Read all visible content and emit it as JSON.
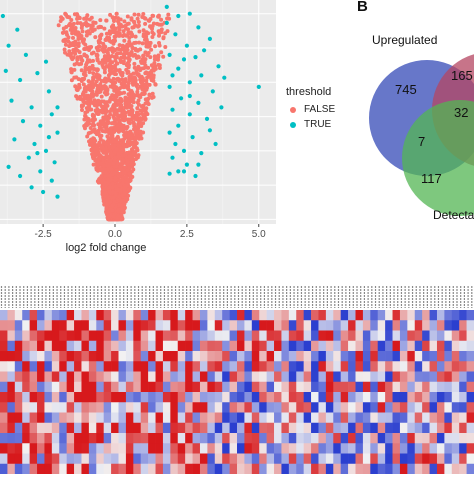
{
  "volcano": {
    "chart_data": {
      "type": "scatter",
      "xlabel": "log2 fold change",
      "x_ticks": [
        -2.5,
        0.0,
        2.5,
        5.0
      ],
      "x_tick_labels": [
        "-2.5",
        "0.0",
        "2.5",
        "5.0"
      ],
      "xlim": [
        -4.0,
        5.6
      ],
      "series": [
        {
          "name": "FALSE",
          "color": "#f8766d"
        },
        {
          "name": "TRUE",
          "color": "#00bfc4"
        }
      ],
      "true_points": [
        [
          -3.9,
          8.9
        ],
        [
          -3.4,
          8.3
        ],
        [
          -3.7,
          7.6
        ],
        [
          -3.1,
          7.2
        ],
        [
          -3.8,
          6.5
        ],
        [
          -3.3,
          6.1
        ],
        [
          -2.7,
          6.4
        ],
        [
          -2.3,
          5.6
        ],
        [
          -3.6,
          5.2
        ],
        [
          -2.9,
          4.9
        ],
        [
          -2.2,
          4.6
        ],
        [
          -3.2,
          4.3
        ],
        [
          -2.6,
          4.1
        ],
        [
          -2.0,
          3.8
        ],
        [
          -3.5,
          3.5
        ],
        [
          -2.8,
          3.3
        ],
        [
          -2.4,
          3.0
        ],
        [
          -3.0,
          2.7
        ],
        [
          -2.1,
          2.5
        ],
        [
          -2.6,
          2.1
        ],
        [
          -3.3,
          1.9
        ],
        [
          -2.2,
          1.7
        ],
        [
          -2.9,
          1.4
        ],
        [
          -2.5,
          1.2
        ],
        [
          -2.0,
          1.0
        ],
        [
          -3.7,
          2.3
        ],
        [
          -2.7,
          2.9
        ],
        [
          -2.3,
          3.6
        ],
        [
          -2.0,
          4.9
        ],
        [
          -2.4,
          6.9
        ],
        [
          1.8,
          9.3
        ],
        [
          2.2,
          8.9
        ],
        [
          2.6,
          9.0
        ],
        [
          2.9,
          8.4
        ],
        [
          2.1,
          8.1
        ],
        [
          3.3,
          7.9
        ],
        [
          2.5,
          7.6
        ],
        [
          1.9,
          7.2
        ],
        [
          2.8,
          7.1
        ],
        [
          3.6,
          6.7
        ],
        [
          2.2,
          6.6
        ],
        [
          3.0,
          6.3
        ],
        [
          2.6,
          6.0
        ],
        [
          1.9,
          5.8
        ],
        [
          3.4,
          5.6
        ],
        [
          2.3,
          5.3
        ],
        [
          2.9,
          5.1
        ],
        [
          2.0,
          4.8
        ],
        [
          2.6,
          4.6
        ],
        [
          3.2,
          4.4
        ],
        [
          2.2,
          4.1
        ],
        [
          1.9,
          3.8
        ],
        [
          2.7,
          3.6
        ],
        [
          2.1,
          3.3
        ],
        [
          2.4,
          3.0
        ],
        [
          3.0,
          2.9
        ],
        [
          2.0,
          2.7
        ],
        [
          2.5,
          2.4
        ],
        [
          2.2,
          2.1
        ],
        [
          2.8,
          1.9
        ],
        [
          3.8,
          6.2
        ],
        [
          3.5,
          3.3
        ],
        [
          2.4,
          2.1
        ],
        [
          1.9,
          2.0
        ],
        [
          5.0,
          5.8
        ],
        [
          3.7,
          4.9
        ],
        [
          2.6,
          5.4
        ],
        [
          2.0,
          6.3
        ],
        [
          3.1,
          7.4
        ],
        [
          1.8,
          8.6
        ],
        [
          2.4,
          7.0
        ],
        [
          3.3,
          3.9
        ],
        [
          2.9,
          2.4
        ]
      ]
    }
  },
  "legend": {
    "title": "threshold",
    "items": [
      {
        "label": "FALSE",
        "color": "#f8766d"
      },
      {
        "label": "TRUE",
        "color": "#00bfc4"
      }
    ]
  },
  "venn": {
    "panel_label": "B",
    "set_labels": [
      "Upregulated",
      "Detecta"
    ],
    "counts": [
      "745",
      "165",
      "32",
      "7",
      "117"
    ],
    "colors": [
      "#4c5fbf",
      "#b44561",
      "#53b553"
    ]
  },
  "heatmap": {
    "chart_data": {
      "type": "heatmap",
      "rows": 16,
      "cols": 64,
      "low_color": "#2b3fcf",
      "mid_color": "#f2f2f2",
      "high_color": "#d7191c"
    }
  }
}
